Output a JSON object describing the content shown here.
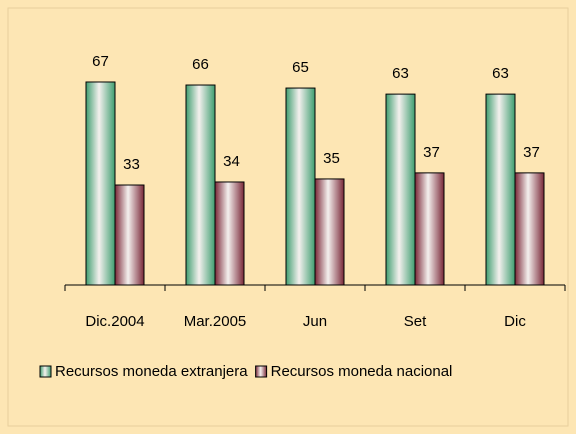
{
  "chart_data": {
    "type": "bar",
    "categories": [
      "Dic.2004",
      "Mar.2005",
      "Jun",
      "Set",
      "Dic"
    ],
    "series": [
      {
        "name": "Recursos moneda extranjera",
        "color": "#3f9e70",
        "values": [
          67,
          66,
          65,
          63,
          63
        ]
      },
      {
        "name": "Recursos moneda nacional",
        "color": "#7a2838",
        "values": [
          33,
          34,
          35,
          37,
          37
        ]
      }
    ],
    "legend": "bottom"
  }
}
